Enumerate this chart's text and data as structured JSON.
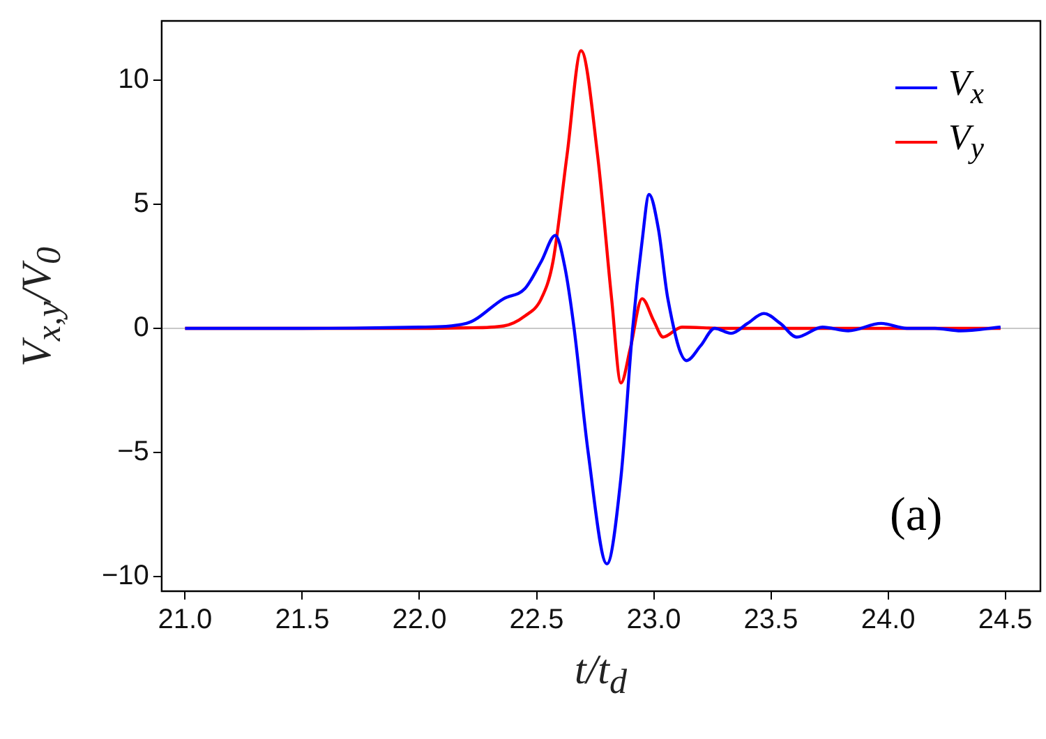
{
  "chart_data": {
    "type": "line",
    "xlabel": "t/t$_{d}$",
    "ylabel": "V$_{x,y}$/V$_{0}$",
    "annotations": [
      "(a)"
    ],
    "xlim": [
      20.9,
      24.65
    ],
    "ylim": [
      -10.6,
      12.4
    ],
    "xticks": [
      {
        "value": 21,
        "label": "21.0"
      },
      {
        "value": 21.5,
        "label": "21.5"
      },
      {
        "value": 22,
        "label": "22.0"
      },
      {
        "value": 22.5,
        "label": "22.5"
      },
      {
        "value": 23,
        "label": "23.0"
      },
      {
        "value": 23.5,
        "label": "23.5"
      },
      {
        "value": 24,
        "label": "24.0"
      },
      {
        "value": 24.5,
        "label": "24.5"
      }
    ],
    "yticks": [
      -10,
      -5,
      0,
      5,
      10
    ],
    "grid": false,
    "legend": "top right",
    "marker": "none",
    "line_style": "solid",
    "ref_lines": [
      {
        "axis": "y",
        "value": 0,
        "color": "#c8c8c8"
      }
    ],
    "series": [
      {
        "name": "V$_{x}$",
        "color": "#0000ff",
        "x": [
          21.0,
          21.5,
          22.0,
          22.2,
          22.36,
          22.45,
          22.52,
          22.58,
          22.62,
          22.66,
          22.72,
          22.8,
          22.86,
          22.91,
          22.95,
          22.98,
          23.02,
          23.06,
          23.14,
          23.2,
          23.26,
          23.33,
          23.4,
          23.47,
          23.54,
          23.61,
          23.72,
          23.83,
          23.97,
          24.08,
          24.2,
          24.31,
          24.48
        ],
        "values": [
          0,
          0,
          0.05,
          0.2,
          1.2,
          1.6,
          2.7,
          3.75,
          2.5,
          0,
          -5,
          -9.5,
          -6,
          0,
          3.5,
          5.4,
          4,
          1.2,
          -1.3,
          -0.7,
          0,
          -0.2,
          0.2,
          0.6,
          0.2,
          -0.35,
          0.05,
          -0.1,
          0.2,
          0,
          0,
          -0.1,
          0.05
        ]
      },
      {
        "name": "V$_{y}$",
        "color": "#ff0000",
        "x": [
          21.0,
          21.5,
          22.0,
          22.2,
          22.36,
          22.45,
          22.52,
          22.57,
          22.63,
          22.69,
          22.76,
          22.82,
          22.86,
          22.9,
          22.95,
          23.0,
          23.04,
          23.12,
          23.3,
          24.0,
          24.48
        ],
        "values": [
          0,
          0,
          0,
          0.02,
          0.1,
          0.5,
          1.2,
          2.7,
          7,
          11.2,
          7,
          1.2,
          -2.2,
          -0.8,
          1.2,
          0.3,
          -0.35,
          0.05,
          0,
          0,
          0
        ]
      }
    ]
  }
}
